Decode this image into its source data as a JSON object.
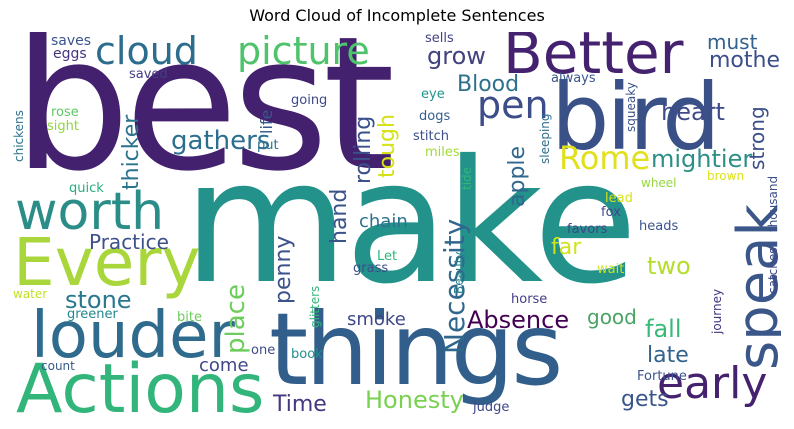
{
  "title": "Word Cloud of Incomplete Sentences",
  "words": [
    {
      "text": "best",
      "color": "#44216f"
    },
    {
      "text": "make",
      "color": "#22928b"
    },
    {
      "text": "things",
      "color": "#315e8a"
    },
    {
      "text": "bird",
      "color": "#3a5188"
    },
    {
      "text": "Better",
      "color": "#44226f"
    },
    {
      "text": "speak",
      "color": "#3b5688"
    },
    {
      "text": "Every",
      "color": "#a8d63b"
    },
    {
      "text": "worth",
      "color": "#2b8d88"
    },
    {
      "text": "louder",
      "color": "#2f6b8d"
    },
    {
      "text": "Actions",
      "color": "#32b57a"
    },
    {
      "text": "early",
      "color": "#45226e"
    },
    {
      "text": "cloud",
      "color": "#2c6d8d"
    },
    {
      "text": "picture",
      "color": "#4ec36b"
    },
    {
      "text": "pen",
      "color": "#3d4d89"
    },
    {
      "text": "Rome",
      "color": "#e1e01d"
    },
    {
      "text": "mightier",
      "color": "#2c8f87"
    },
    {
      "text": "gathers",
      "color": "#2c6e8e"
    },
    {
      "text": "heart",
      "color": "#3e4a89"
    },
    {
      "text": "mother",
      "color": "#3c4e8a"
    },
    {
      "text": "grow",
      "color": "#42427f"
    },
    {
      "text": "must",
      "color": "#32628d"
    },
    {
      "text": "Blood",
      "color": "#2d718e"
    },
    {
      "text": "Necessity",
      "color": "#30678d"
    },
    {
      "text": "Absence",
      "color": "#440154"
    },
    {
      "text": "Practice",
      "color": "#3c508b"
    },
    {
      "text": "stone",
      "color": "#2a788e"
    },
    {
      "text": "Honesty",
      "color": "#7ad151"
    },
    {
      "text": "Time",
      "color": "#453781"
    },
    {
      "text": "two",
      "color": "#b5de2b"
    },
    {
      "text": "fall",
      "color": "#38b977"
    },
    {
      "text": "late",
      "color": "#33628d"
    },
    {
      "text": "gets",
      "color": "#3a548c"
    },
    {
      "text": "good",
      "color": "#48a364"
    },
    {
      "text": "come",
      "color": "#404688"
    },
    {
      "text": "smoke",
      "color": "#3f4889"
    },
    {
      "text": "chain",
      "color": "#2c718e"
    },
    {
      "text": "far",
      "color": "#d2e21b"
    },
    {
      "text": "apple",
      "color": "#31678e"
    },
    {
      "text": "tough",
      "color": "#d5e21a"
    },
    {
      "text": "rolling",
      "color": "#3b518b"
    },
    {
      "text": "thicker",
      "color": "#2c738e"
    },
    {
      "text": "hand",
      "color": "#3a538b"
    },
    {
      "text": "penny",
      "color": "#3b528b"
    },
    {
      "text": "place",
      "color": "#6ccd5a"
    },
    {
      "text": "strong",
      "color": "#3c4f8a"
    },
    {
      "text": "life",
      "color": "#37598c"
    },
    {
      "text": "sells",
      "color": "#404387"
    },
    {
      "text": "saves",
      "color": "#3a548c"
    },
    {
      "text": "eggs",
      "color": "#46327e"
    },
    {
      "text": "saved",
      "color": "#433e85"
    },
    {
      "text": "chickens",
      "color": "#2c728e"
    },
    {
      "text": "rose",
      "color": "#5dc863"
    },
    {
      "text": "sight",
      "color": "#90d743"
    },
    {
      "text": "quick",
      "color": "#27ad81"
    },
    {
      "text": "water",
      "color": "#c2df23"
    },
    {
      "text": "greener",
      "color": "#24868e"
    },
    {
      "text": "bite",
      "color": "#6ccd5a"
    },
    {
      "text": "count",
      "color": "#38598c"
    },
    {
      "text": "one",
      "color": "#3f4a8a"
    },
    {
      "text": "book",
      "color": "#21908d"
    },
    {
      "text": "glitters",
      "color": "#35b779"
    },
    {
      "text": "Beauty",
      "color": "#277f8e"
    },
    {
      "text": "Let",
      "color": "#2fb47c"
    },
    {
      "text": "grass",
      "color": "#3d4e8a"
    },
    {
      "text": "going",
      "color": "#3e4989"
    },
    {
      "text": "put",
      "color": "#2c728e"
    },
    {
      "text": "eye",
      "color": "#1f968b"
    },
    {
      "text": "dogs",
      "color": "#365c8d"
    },
    {
      "text": "stitch",
      "color": "#3c4f8a"
    },
    {
      "text": "miles",
      "color": "#a2da37"
    },
    {
      "text": "always",
      "color": "#3a548c"
    },
    {
      "text": "squeaky",
      "color": "#3b528b"
    },
    {
      "text": "sleeping",
      "color": "#2e6e8e"
    },
    {
      "text": "tide",
      "color": "#32b67a"
    },
    {
      "text": "wheel",
      "color": "#95d840"
    },
    {
      "text": "brown",
      "color": "#dde318"
    },
    {
      "text": "thousand",
      "color": "#3c4f8a"
    },
    {
      "text": "catches",
      "color": "#3f4788"
    },
    {
      "text": "lead",
      "color": "#d8e219"
    },
    {
      "text": "fox",
      "color": "#3f4889"
    },
    {
      "text": "heads",
      "color": "#3a548c"
    },
    {
      "text": "favors",
      "color": "#404588"
    },
    {
      "text": "wait",
      "color": "#cde11d"
    },
    {
      "text": "horse",
      "color": "#433d84"
    },
    {
      "text": "journey",
      "color": "#46337f"
    },
    {
      "text": "Fortune",
      "color": "#3b528b"
    },
    {
      "text": "judge",
      "color": "#3f4788"
    }
  ]
}
